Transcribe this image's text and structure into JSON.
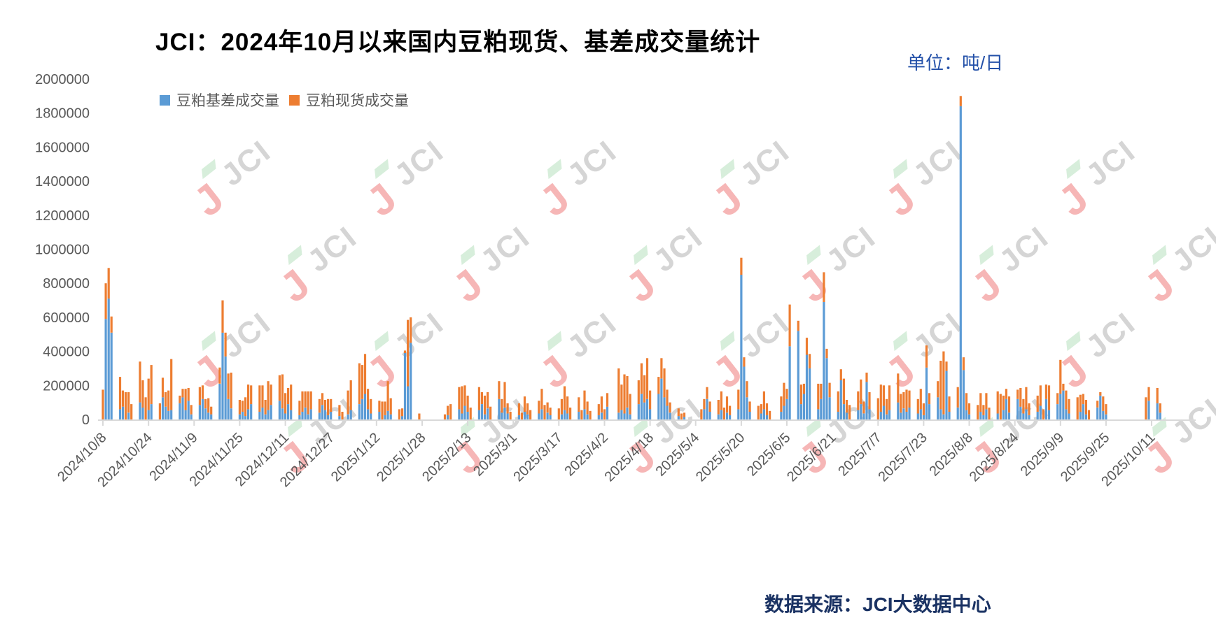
{
  "title": "JCI：2024年10月以来国内豆粕现货、基差成交量统计",
  "unit_label": "单位：吨/日",
  "source_label": "数据来源：JCI大数据中心",
  "watermark_text": "JCI",
  "colors": {
    "basis": "#5B9BD5",
    "spot": "#ED7D31",
    "unit": "#2350A8",
    "source": "#1A3263",
    "axis_text": "#595959",
    "axis_line": "#D9D9D9",
    "title": "#000000"
  },
  "chart_data": {
    "type": "bar",
    "stacked": true,
    "grid": false,
    "legend_position": "top-left-inside",
    "series_names": [
      "豆粕基差成交量",
      "豆粕现货成交量"
    ],
    "ylabel": "",
    "xlabel": "",
    "ylim": [
      0,
      2000000
    ],
    "ytick_step": 200000,
    "x_axis": "calendar-days",
    "x_start_date": "2024/10/8",
    "x_end_date": "2025/10/24",
    "x_tick_labels": [
      "2024/10/8",
      "2024/10/24",
      "2024/11/9",
      "2024/11/25",
      "2024/12/11",
      "2024/12/27",
      "2025/1/12",
      "2025/1/28",
      "2025/2/13",
      "2025/3/1",
      "2025/3/17",
      "2025/4/2",
      "2025/4/18",
      "2025/5/4",
      "2025/5/20",
      "2025/6/5",
      "2025/6/21",
      "2025/7/7",
      "2025/7/23",
      "2025/8/8",
      "2025/8/24",
      "2025/9/9",
      "2025/9/25",
      "2025/10/11"
    ],
    "days_format": [
      "date",
      "basis_volume",
      "spot_volume"
    ],
    "days": [
      [
        "2024/10/8",
        0,
        175000
      ],
      [
        "2024/10/9",
        590000,
        210000
      ],
      [
        "2024/10/10",
        710000,
        180000
      ],
      [
        "2024/10/11",
        510000,
        95000
      ],
      [
        "2024/10/14",
        60000,
        190000
      ],
      [
        "2024/10/15",
        75000,
        95000
      ],
      [
        "2024/10/16",
        0,
        160000
      ],
      [
        "2024/10/17",
        40000,
        120000
      ],
      [
        "2024/10/18",
        0,
        90000
      ],
      [
        "2024/10/21",
        100000,
        240000
      ],
      [
        "2024/10/22",
        70000,
        160000
      ],
      [
        "2024/10/23",
        0,
        130000
      ],
      [
        "2024/10/24",
        55000,
        185000
      ],
      [
        "2024/10/25",
        90000,
        230000
      ],
      [
        "2024/10/28",
        0,
        95000
      ],
      [
        "2024/10/29",
        130000,
        115000
      ],
      [
        "2024/10/30",
        75000,
        85000
      ],
      [
        "2024/10/31",
        50000,
        120000
      ],
      [
        "2024/11/1",
        55000,
        300000
      ],
      [
        "2024/11/4",
        95000,
        45000
      ],
      [
        "2024/11/5",
        130000,
        50000
      ],
      [
        "2024/11/6",
        55000,
        125000
      ],
      [
        "2024/11/7",
        110000,
        75000
      ],
      [
        "2024/11/8",
        30000,
        55000
      ],
      [
        "2024/11/11",
        85000,
        105000
      ],
      [
        "2024/11/12",
        120000,
        80000
      ],
      [
        "2024/11/13",
        65000,
        55000
      ],
      [
        "2024/11/14",
        40000,
        85000
      ],
      [
        "2024/11/15",
        30000,
        45000
      ],
      [
        "2024/11/18",
        210000,
        95000
      ],
      [
        "2024/11/19",
        510000,
        190000
      ],
      [
        "2024/11/20",
        370000,
        140000
      ],
      [
        "2024/11/21",
        120000,
        150000
      ],
      [
        "2024/11/22",
        65000,
        210000
      ],
      [
        "2024/11/25",
        30000,
        85000
      ],
      [
        "2024/11/26",
        45000,
        65000
      ],
      [
        "2024/11/27",
        20000,
        110000
      ],
      [
        "2024/11/28",
        60000,
        145000
      ],
      [
        "2024/11/29",
        90000,
        110000
      ],
      [
        "2024/12/2",
        45000,
        155000
      ],
      [
        "2024/12/3",
        70000,
        130000
      ],
      [
        "2024/12/4",
        30000,
        85000
      ],
      [
        "2024/12/5",
        55000,
        170000
      ],
      [
        "2024/12/6",
        85000,
        120000
      ],
      [
        "2024/12/9",
        110000,
        150000
      ],
      [
        "2024/12/10",
        65000,
        200000
      ],
      [
        "2024/12/11",
        35000,
        120000
      ],
      [
        "2024/12/12",
        90000,
        95000
      ],
      [
        "2024/12/13",
        55000,
        150000
      ],
      [
        "2024/12/16",
        25000,
        85000
      ],
      [
        "2024/12/17",
        45000,
        120000
      ],
      [
        "2024/12/18",
        70000,
        95000
      ],
      [
        "2024/12/19",
        30000,
        135000
      ],
      [
        "2024/12/20",
        60000,
        105000
      ],
      [
        "2024/12/23",
        40000,
        80000
      ],
      [
        "2024/12/24",
        85000,
        70000
      ],
      [
        "2024/12/25",
        55000,
        60000
      ],
      [
        "2024/12/26",
        25000,
        95000
      ],
      [
        "2024/12/27",
        45000,
        75000
      ],
      [
        "2024/12/30",
        20000,
        65000
      ],
      [
        "2024/12/31",
        0,
        45000
      ],
      [
        "2025/1/2",
        30000,
        140000
      ],
      [
        "2025/1/3",
        55000,
        175000
      ],
      [
        "2025/1/6",
        90000,
        240000
      ],
      [
        "2025/1/7",
        120000,
        200000
      ],
      [
        "2025/1/8",
        150000,
        235000
      ],
      [
        "2025/1/9",
        60000,
        120000
      ],
      [
        "2025/1/10",
        35000,
        85000
      ],
      [
        "2025/1/13",
        45000,
        65000
      ],
      [
        "2025/1/14",
        0,
        105000
      ],
      [
        "2025/1/15",
        25000,
        80000
      ],
      [
        "2025/1/16",
        50000,
        175000
      ],
      [
        "2025/1/17",
        30000,
        95000
      ],
      [
        "2025/1/20",
        0,
        60000
      ],
      [
        "2025/1/21",
        20000,
        45000
      ],
      [
        "2025/1/22",
        390000,
        15000
      ],
      [
        "2025/1/23",
        195000,
        390000
      ],
      [
        "2025/1/24",
        450000,
        150000
      ],
      [
        "2025/1/27",
        0,
        35000
      ],
      [
        "2025/2/5",
        0,
        30000
      ],
      [
        "2025/2/6",
        25000,
        55000
      ],
      [
        "2025/2/7",
        0,
        90000
      ],
      [
        "2025/2/10",
        60000,
        130000
      ],
      [
        "2025/2/11",
        35000,
        160000
      ],
      [
        "2025/2/12",
        80000,
        120000
      ],
      [
        "2025/2/13",
        45000,
        95000
      ],
      [
        "2025/2/14",
        0,
        70000
      ],
      [
        "2025/2/17",
        55000,
        135000
      ],
      [
        "2025/2/18",
        90000,
        70000
      ],
      [
        "2025/2/19",
        30000,
        110000
      ],
      [
        "2025/2/20",
        65000,
        95000
      ],
      [
        "2025/2/21",
        0,
        75000
      ],
      [
        "2025/2/24",
        120000,
        105000
      ],
      [
        "2025/2/25",
        40000,
        80000
      ],
      [
        "2025/2/26",
        70000,
        150000
      ],
      [
        "2025/2/27",
        35000,
        60000
      ],
      [
        "2025/2/28",
        0,
        45000
      ],
      [
        "2025/3/3",
        25000,
        70000
      ],
      [
        "2025/3/4",
        0,
        40000
      ],
      [
        "2025/3/5",
        45000,
        90000
      ],
      [
        "2025/3/6",
        30000,
        65000
      ],
      [
        "2025/3/7",
        0,
        55000
      ],
      [
        "2025/3/10",
        35000,
        75000
      ],
      [
        "2025/3/11",
        60000,
        120000
      ],
      [
        "2025/3/12",
        0,
        85000
      ],
      [
        "2025/3/13",
        40000,
        60000
      ],
      [
        "2025/3/14",
        25000,
        45000
      ],
      [
        "2025/3/17",
        0,
        65000
      ],
      [
        "2025/3/18",
        30000,
        90000
      ],
      [
        "2025/3/19",
        55000,
        140000
      ],
      [
        "2025/3/20",
        35000,
        100000
      ],
      [
        "2025/3/21",
        0,
        70000
      ],
      [
        "2025/3/24",
        45000,
        85000
      ],
      [
        "2025/3/25",
        0,
        55000
      ],
      [
        "2025/3/26",
        60000,
        110000
      ],
      [
        "2025/3/27",
        30000,
        75000
      ],
      [
        "2025/3/28",
        0,
        50000
      ],
      [
        "2025/3/31",
        25000,
        65000
      ],
      [
        "2025/4/1",
        40000,
        95000
      ],
      [
        "2025/4/2",
        0,
        60000
      ],
      [
        "2025/4/3",
        75000,
        80000
      ],
      [
        "2025/4/7",
        40000,
        260000
      ],
      [
        "2025/4/8",
        55000,
        150000
      ],
      [
        "2025/4/9",
        35000,
        230000
      ],
      [
        "2025/4/10",
        70000,
        185000
      ],
      [
        "2025/4/11",
        30000,
        120000
      ],
      [
        "2025/4/14",
        90000,
        140000
      ],
      [
        "2025/4/15",
        150000,
        180000
      ],
      [
        "2025/4/16",
        100000,
        160000
      ],
      [
        "2025/4/17",
        120000,
        240000
      ],
      [
        "2025/4/18",
        60000,
        110000
      ],
      [
        "2025/4/21",
        150000,
        100000
      ],
      [
        "2025/4/22",
        240000,
        120000
      ],
      [
        "2025/4/23",
        130000,
        170000
      ],
      [
        "2025/4/24",
        80000,
        95000
      ],
      [
        "2025/4/25",
        40000,
        60000
      ],
      [
        "2025/4/28",
        20000,
        45000
      ],
      [
        "2025/4/29",
        0,
        35000
      ],
      [
        "2025/4/30",
        15000,
        25000
      ],
      [
        "2025/5/6",
        0,
        60000
      ],
      [
        "2025/5/7",
        60000,
        60000
      ],
      [
        "2025/5/8",
        120000,
        70000
      ],
      [
        "2025/5/9",
        45000,
        60000
      ],
      [
        "2025/5/12",
        30000,
        85000
      ],
      [
        "2025/5/13",
        55000,
        110000
      ],
      [
        "2025/5/14",
        0,
        70000
      ],
      [
        "2025/5/15",
        40000,
        95000
      ],
      [
        "2025/5/16",
        25000,
        55000
      ],
      [
        "2025/5/19",
        60000,
        115000
      ],
      [
        "2025/5/20",
        850000,
        100000
      ],
      [
        "2025/5/21",
        310000,
        55000
      ],
      [
        "2025/5/22",
        130000,
        95000
      ],
      [
        "2025/5/23",
        45000,
        60000
      ],
      [
        "2025/5/26",
        0,
        80000
      ],
      [
        "2025/5/27",
        35000,
        55000
      ],
      [
        "2025/5/28",
        60000,
        105000
      ],
      [
        "2025/5/29",
        25000,
        70000
      ],
      [
        "2025/5/30",
        0,
        50000
      ],
      [
        "2025/6/3",
        45000,
        90000
      ],
      [
        "2025/6/4",
        80000,
        135000
      ],
      [
        "2025/6/5",
        120000,
        60000
      ],
      [
        "2025/6/6",
        430000,
        245000
      ],
      [
        "2025/6/9",
        520000,
        60000
      ],
      [
        "2025/6/10",
        90000,
        115000
      ],
      [
        "2025/6/11",
        150000,
        60000
      ],
      [
        "2025/6/12",
        380000,
        100000
      ],
      [
        "2025/6/13",
        300000,
        85000
      ],
      [
        "2025/6/16",
        60000,
        150000
      ],
      [
        "2025/6/17",
        120000,
        90000
      ],
      [
        "2025/6/18",
        690000,
        175000
      ],
      [
        "2025/6/19",
        360000,
        55000
      ],
      [
        "2025/6/20",
        130000,
        85000
      ],
      [
        "2025/6/23",
        45000,
        120000
      ],
      [
        "2025/6/24",
        230000,
        65000
      ],
      [
        "2025/6/25",
        90000,
        150000
      ],
      [
        "2025/6/26",
        40000,
        75000
      ],
      [
        "2025/6/27",
        0,
        85000
      ],
      [
        "2025/6/30",
        55000,
        110000
      ],
      [
        "2025/7/1",
        90000,
        145000
      ],
      [
        "2025/7/2",
        35000,
        70000
      ],
      [
        "2025/7/3",
        220000,
        55000
      ],
      [
        "2025/7/4",
        60000,
        100000
      ],
      [
        "2025/7/7",
        0,
        125000
      ],
      [
        "2025/7/8",
        45000,
        160000
      ],
      [
        "2025/7/9",
        80000,
        120000
      ],
      [
        "2025/7/10",
        30000,
        90000
      ],
      [
        "2025/7/11",
        55000,
        145000
      ],
      [
        "2025/7/14",
        100000,
        170000
      ],
      [
        "2025/7/15",
        40000,
        110000
      ],
      [
        "2025/7/16",
        65000,
        95000
      ],
      [
        "2025/7/17",
        45000,
        130000
      ],
      [
        "2025/7/18",
        70000,
        100000
      ],
      [
        "2025/7/21",
        35000,
        85000
      ],
      [
        "2025/7/22",
        60000,
        120000
      ],
      [
        "2025/7/23",
        25000,
        70000
      ],
      [
        "2025/7/24",
        305000,
        130000
      ],
      [
        "2025/7/25",
        90000,
        65000
      ],
      [
        "2025/7/28",
        130000,
        95000
      ],
      [
        "2025/7/29",
        60000,
        285000
      ],
      [
        "2025/7/30",
        30000,
        370000
      ],
      [
        "2025/7/31",
        285000,
        55000
      ],
      [
        "2025/8/1",
        45000,
        90000
      ],
      [
        "2025/8/4",
        70000,
        120000
      ],
      [
        "2025/8/5",
        1840000,
        60000
      ],
      [
        "2025/8/6",
        290000,
        75000
      ],
      [
        "2025/8/7",
        55000,
        100000
      ],
      [
        "2025/8/8",
        30000,
        65000
      ],
      [
        "2025/8/11",
        0,
        85000
      ],
      [
        "2025/8/12",
        45000,
        110000
      ],
      [
        "2025/8/13",
        25000,
        60000
      ],
      [
        "2025/8/14",
        60000,
        95000
      ],
      [
        "2025/8/15",
        0,
        70000
      ],
      [
        "2025/8/18",
        35000,
        130000
      ],
      [
        "2025/8/19",
        0,
        150000
      ],
      [
        "2025/8/20",
        55000,
        85000
      ],
      [
        "2025/8/21",
        120000,
        60000
      ],
      [
        "2025/8/22",
        40000,
        95000
      ],
      [
        "2025/8/25",
        120000,
        55000
      ],
      [
        "2025/8/26",
        75000,
        110000
      ],
      [
        "2025/8/27",
        35000,
        85000
      ],
      [
        "2025/8/28",
        60000,
        130000
      ],
      [
        "2025/8/29",
        25000,
        70000
      ],
      [
        "2025/9/1",
        45000,
        95000
      ],
      [
        "2025/9/2",
        80000,
        120000
      ],
      [
        "2025/9/3",
        0,
        60000
      ],
      [
        "2025/9/4",
        120000,
        85000
      ],
      [
        "2025/9/5",
        55000,
        145000
      ],
      [
        "2025/9/8",
        90000,
        65000
      ],
      [
        "2025/9/9",
        150000,
        200000
      ],
      [
        "2025/9/10",
        170000,
        40000
      ],
      [
        "2025/9/11",
        60000,
        110000
      ],
      [
        "2025/9/12",
        35000,
        85000
      ],
      [
        "2025/9/15",
        0,
        130000
      ],
      [
        "2025/9/16",
        45000,
        100000
      ],
      [
        "2025/9/17",
        90000,
        60000
      ],
      [
        "2025/9/18",
        30000,
        85000
      ],
      [
        "2025/9/19",
        0,
        55000
      ],
      [
        "2025/9/22",
        70000,
        40000
      ],
      [
        "2025/9/23",
        140000,
        20000
      ],
      [
        "2025/9/24",
        50000,
        85000
      ],
      [
        "2025/9/25",
        30000,
        60000
      ],
      [
        "2025/10/9",
        0,
        130000
      ],
      [
        "2025/10/10",
        110000,
        80000
      ],
      [
        "2025/10/13",
        95000,
        90000
      ],
      [
        "2025/10/14",
        40000,
        55000
      ]
    ]
  }
}
